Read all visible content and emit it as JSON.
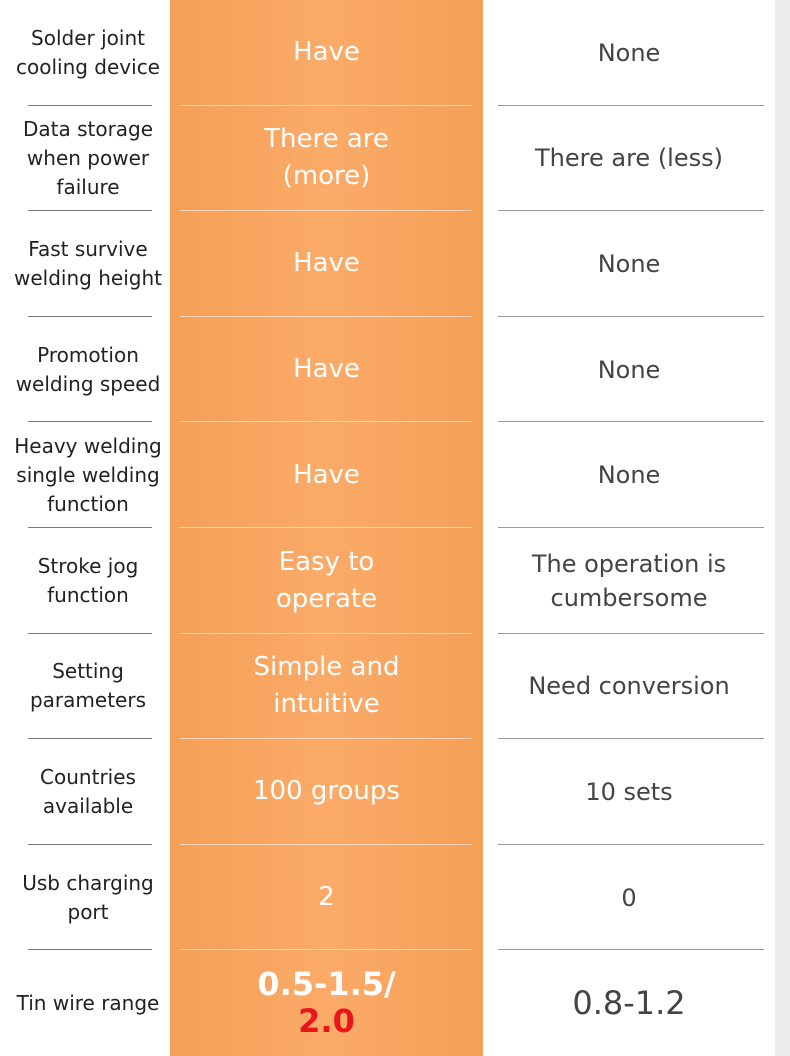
{
  "table": {
    "rows": [
      {
        "label": "Solder joint cooling device",
        "ours": "Have",
        "theirs": "None"
      },
      {
        "label": "Data storage when power failure",
        "ours": "There are (more)",
        "theirs": "There are (less)"
      },
      {
        "label": "Fast survive welding height",
        "ours": "Have",
        "theirs": "None"
      },
      {
        "label": "Promotion welding speed",
        "ours": "Have",
        "theirs": "None"
      },
      {
        "label": "Heavy welding single welding function",
        "ours": "Have",
        "theirs": "None"
      },
      {
        "label": "Stroke jog function",
        "ours": "Easy to operate",
        "theirs": "The operation is cumbersome"
      },
      {
        "label": "Setting parameters",
        "ours": "Simple and intuitive",
        "theirs": "Need conversion"
      },
      {
        "label": "Countries available",
        "ours": "100 groups",
        "theirs": "10 sets"
      },
      {
        "label": "Usb charging port",
        "ours": "2",
        "theirs": "0"
      },
      {
        "label": "Tin wire range",
        "ours": [
          "0.5-1.5/",
          "2.0"
        ],
        "theirs": "0.8-1.2"
      }
    ]
  }
}
